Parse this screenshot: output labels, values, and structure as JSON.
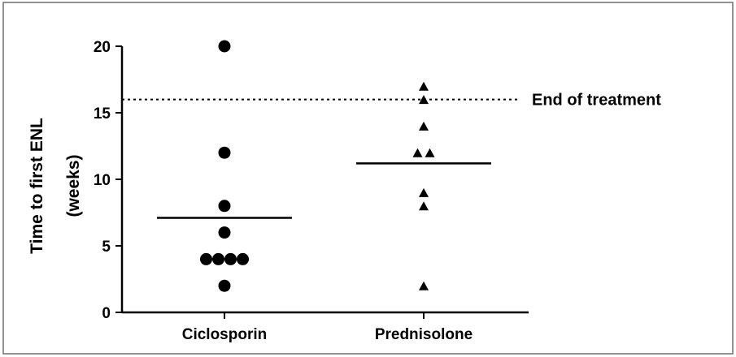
{
  "chart_data": {
    "type": "scatter",
    "title": "",
    "xlabel": "",
    "ylabel": [
      "Time to first ENL",
      "(weeks)"
    ],
    "ylim": [
      0,
      20
    ],
    "yticks": [
      0,
      5,
      10,
      15,
      20
    ],
    "grid": false,
    "categories": [
      "Ciclosporin",
      "Prednisolone"
    ],
    "series": [
      {
        "category": "Ciclosporin",
        "marker": "circle",
        "values": [
          20,
          12,
          8,
          6,
          4,
          4,
          4,
          4,
          2
        ],
        "mean": 7.1
      },
      {
        "category": "Prednisolone",
        "marker": "triangle",
        "values": [
          17,
          16,
          14,
          12,
          12,
          9,
          8,
          2
        ],
        "mean": 11.2
      }
    ],
    "reference_line": {
      "y": 16,
      "label": "End of treatment",
      "style": "dotted"
    }
  }
}
